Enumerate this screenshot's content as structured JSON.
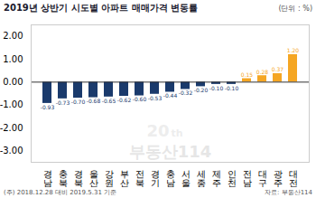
{
  "chart_data": {
    "type": "bar",
    "title": "2019년 상반기 시도별 아파트 매매가격 변동률",
    "subtitle": "(단위 : %)",
    "annotations": [
      "(주) 2018.12.28 대비 2019.5.31 기준",
      "자료: 부동산114",
      "부동산114",
      "20",
      "th"
    ],
    "categories": [
      "경\n남",
      "충\n북",
      "경\n북",
      "울\n산",
      "강\n원",
      "부\n산",
      "전\n북",
      "경\n기",
      "충\n남",
      "서\n울",
      "세\n종",
      "제\n주",
      "인\n천",
      "전\n남",
      "대\n구",
      "광\n주",
      "대\n전"
    ],
    "values": [
      -0.93,
      -0.73,
      -0.7,
      -0.68,
      -0.65,
      -0.62,
      -0.6,
      -0.53,
      -0.44,
      -0.32,
      -0.2,
      -0.1,
      -0.1,
      0.15,
      0.28,
      0.37,
      1.2
    ],
    "value_labels": [
      "-0.93",
      "-0.73",
      "-0.70",
      "-0.68",
      "-0.65",
      "-0.62",
      "-0.60",
      "-0.53",
      "-0.44",
      "-0.32",
      "-0.20",
      "-0.10",
      "-0.10",
      "0.15",
      "0.28",
      "0.37",
      "1.20"
    ],
    "colors": [
      "#1a3a6c",
      "#1a3a6c",
      "#1a3a6c",
      "#1a3a6c",
      "#1a3a6c",
      "#1a3a6c",
      "#1a3a6c",
      "#1a3a6c",
      "#1a3a6c",
      "#1a3a6c",
      "#1a3a6c",
      "#1a3a6c",
      "#1a3a6c",
      "#f5a623",
      "#f5a623",
      "#f5a623",
      "#f5a623"
    ],
    "ylim": [
      -3.5,
      2.5
    ],
    "yticks": [
      {
        "value": -3.0,
        "label": "-3.00"
      },
      {
        "value": -2.0,
        "label": "-2.00"
      },
      {
        "value": -1.0,
        "label": "-1.00"
      },
      {
        "value": 0.0,
        "label": "0.00"
      },
      {
        "value": 1.0,
        "label": "1.00"
      },
      {
        "value": 2.0,
        "label": "2.00"
      }
    ],
    "data_labels": true,
    "grid": false
  }
}
